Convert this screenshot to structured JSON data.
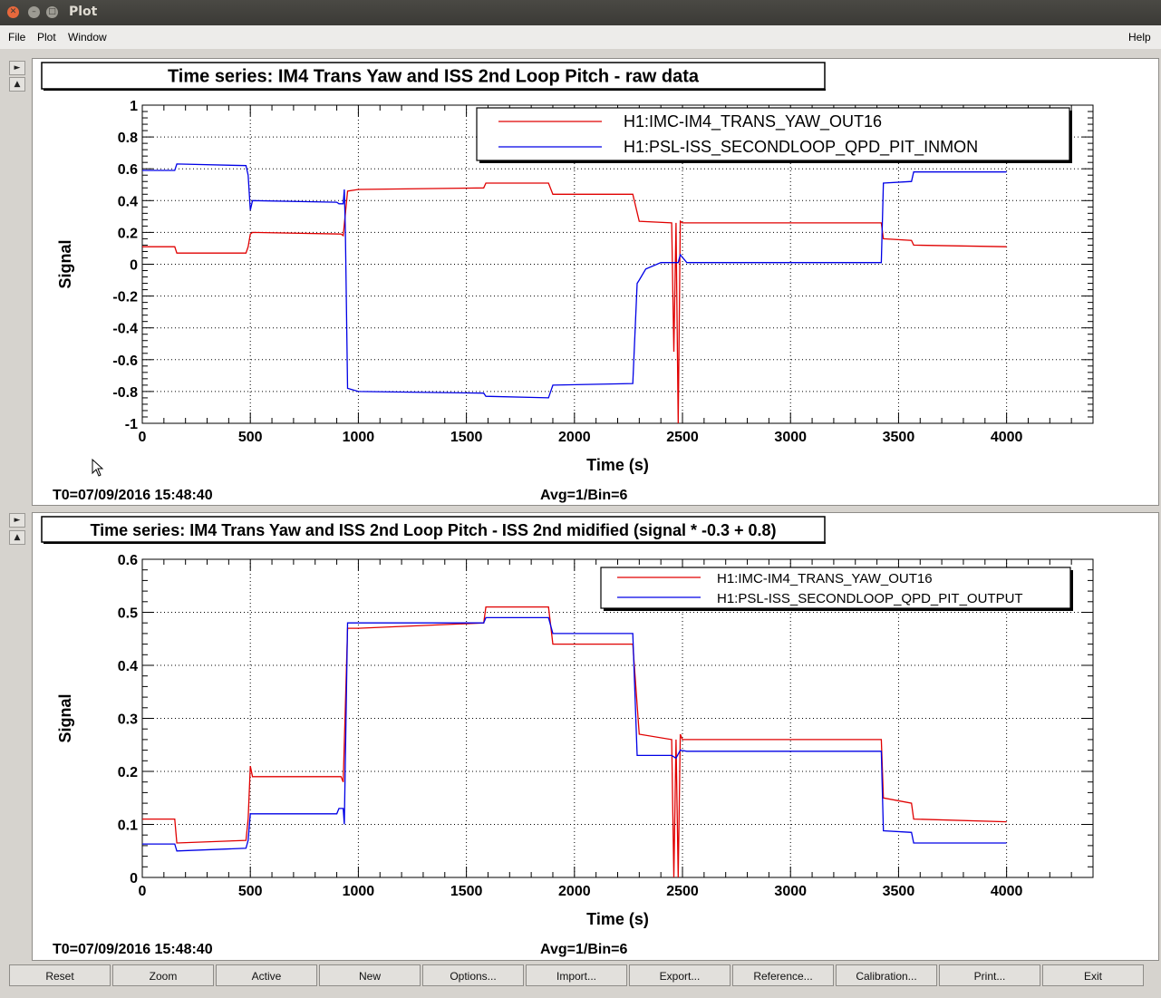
{
  "window": {
    "title": "Plot"
  },
  "menu": {
    "file": "File",
    "plot": "Plot",
    "window": "Window",
    "help": "Help"
  },
  "toolbar": [
    "Reset",
    "Zoom",
    "Active",
    "New",
    "Options...",
    "Import...",
    "Export...",
    "Reference...",
    "Calibration...",
    "Print...",
    "Exit"
  ],
  "colors": {
    "red": "#e00000",
    "blue": "#0000e6",
    "titlebar": "#3c3b37",
    "menubar": "#edecea"
  },
  "chart_data": [
    {
      "type": "line",
      "title": "Time series: IM4 Trans Yaw and ISS 2nd Loop Pitch - raw data",
      "xlabel": "Time (s)",
      "ylabel": "Signal",
      "xlim": [
        0,
        4400
      ],
      "ylim": [
        -1,
        1
      ],
      "xticks": [
        0,
        500,
        1000,
        1500,
        2000,
        2500,
        3000,
        3500,
        4000
      ],
      "yticks": [
        1,
        0.8,
        0.6,
        0.4,
        0.2,
        0,
        -0.2,
        -0.4,
        -0.6,
        -0.8,
        -1
      ],
      "ytick_labels": [
        "1",
        "0.8",
        "0.6",
        "0.4",
        "0.2",
        "0",
        "-0.2",
        "-0.4",
        "-0.6",
        "-0.8",
        "-1"
      ],
      "grid": true,
      "legend_position": "top-right",
      "info_left": "T0=07/09/2016 15:48:40",
      "info_right": "Avg=1/Bin=6",
      "series": [
        {
          "name": "H1:IMC-IM4_TRANS_YAW_OUT16",
          "color": "red",
          "points": [
            [
              0,
              0.11
            ],
            [
              150,
              0.11
            ],
            [
              160,
              0.07
            ],
            [
              480,
              0.07
            ],
            [
              490,
              0.11
            ],
            [
              500,
              0.19
            ],
            [
              510,
              0.2
            ],
            [
              920,
              0.19
            ],
            [
              930,
              0.18
            ],
            [
              950,
              0.46
            ],
            [
              1000,
              0.47
            ],
            [
              1580,
              0.48
            ],
            [
              1590,
              0.51
            ],
            [
              1880,
              0.51
            ],
            [
              1900,
              0.44
            ],
            [
              2270,
              0.44
            ],
            [
              2300,
              0.27
            ],
            [
              2450,
              0.26
            ],
            [
              2460,
              -0.55
            ],
            [
              2470,
              0.26
            ],
            [
              2480,
              -1.0
            ],
            [
              2490,
              0.27
            ],
            [
              2500,
              0.26
            ],
            [
              3420,
              0.26
            ],
            [
              3430,
              0.16
            ],
            [
              3560,
              0.15
            ],
            [
              3570,
              0.12
            ],
            [
              4000,
              0.11
            ]
          ]
        },
        {
          "name": "H1:PSL-ISS_SECONDLOOP_QPD_PIT_INMON",
          "color": "blue",
          "points": [
            [
              0,
              0.59
            ],
            [
              150,
              0.59
            ],
            [
              160,
              0.63
            ],
            [
              480,
              0.62
            ],
            [
              490,
              0.56
            ],
            [
              500,
              0.34
            ],
            [
              510,
              0.4
            ],
            [
              900,
              0.39
            ],
            [
              910,
              0.38
            ],
            [
              930,
              0.38
            ],
            [
              935,
              0.47
            ],
            [
              940,
              0.2
            ],
            [
              950,
              -0.78
            ],
            [
              1000,
              -0.8
            ],
            [
              1580,
              -0.81
            ],
            [
              1590,
              -0.83
            ],
            [
              1880,
              -0.84
            ],
            [
              1900,
              -0.76
            ],
            [
              2270,
              -0.75
            ],
            [
              2290,
              -0.12
            ],
            [
              2300,
              -0.1
            ],
            [
              2330,
              -0.03
            ],
            [
              2400,
              0.01
            ],
            [
              2480,
              0.01
            ],
            [
              2490,
              0.06
            ],
            [
              2520,
              0.01
            ],
            [
              3420,
              0.01
            ],
            [
              3430,
              0.51
            ],
            [
              3560,
              0.52
            ],
            [
              3570,
              0.58
            ],
            [
              4000,
              0.58
            ]
          ]
        }
      ]
    },
    {
      "type": "line",
      "title": "Time series: IM4 Trans Yaw and ISS 2nd Loop Pitch - ISS 2nd midified (signal * -0.3 + 0.8)",
      "xlabel": "Time (s)",
      "ylabel": "Signal",
      "xlim": [
        0,
        4400
      ],
      "ylim": [
        0,
        0.6
      ],
      "xticks": [
        0,
        500,
        1000,
        1500,
        2000,
        2500,
        3000,
        3500,
        4000
      ],
      "yticks": [
        0.6,
        0.5,
        0.4,
        0.3,
        0.2,
        0.1,
        0
      ],
      "ytick_labels": [
        "0.6",
        "0.5",
        "0.4",
        "0.3",
        "0.2",
        "0.1",
        "0"
      ],
      "grid": true,
      "legend_position": "top-right",
      "info_left": "T0=07/09/2016 15:48:40",
      "info_right": "Avg=1/Bin=6",
      "series": [
        {
          "name": "H1:IMC-IM4_TRANS_YAW_OUT16",
          "color": "red",
          "points": [
            [
              0,
              0.11
            ],
            [
              150,
              0.11
            ],
            [
              160,
              0.065
            ],
            [
              480,
              0.07
            ],
            [
              490,
              0.11
            ],
            [
              500,
              0.21
            ],
            [
              510,
              0.19
            ],
            [
              920,
              0.19
            ],
            [
              930,
              0.18
            ],
            [
              950,
              0.47
            ],
            [
              1000,
              0.47
            ],
            [
              1580,
              0.48
            ],
            [
              1590,
              0.51
            ],
            [
              1880,
              0.51
            ],
            [
              1900,
              0.44
            ],
            [
              2270,
              0.44
            ],
            [
              2300,
              0.27
            ],
            [
              2450,
              0.26
            ],
            [
              2460,
              0.0
            ],
            [
              2470,
              0.26
            ],
            [
              2480,
              0.0
            ],
            [
              2490,
              0.27
            ],
            [
              2500,
              0.26
            ],
            [
              3420,
              0.26
            ],
            [
              3430,
              0.15
            ],
            [
              3560,
              0.14
            ],
            [
              3570,
              0.11
            ],
            [
              4000,
              0.105
            ]
          ]
        },
        {
          "name": "H1:PSL-ISS_SECONDLOOP_QPD_PIT_OUTPUT",
          "color": "blue",
          "points": [
            [
              0,
              0.063
            ],
            [
              150,
              0.063
            ],
            [
              160,
              0.05
            ],
            [
              480,
              0.055
            ],
            [
              490,
              0.07
            ],
            [
              500,
              0.12
            ],
            [
              510,
              0.12
            ],
            [
              900,
              0.12
            ],
            [
              910,
              0.13
            ],
            [
              930,
              0.13
            ],
            [
              935,
              0.1
            ],
            [
              950,
              0.48
            ],
            [
              1000,
              0.48
            ],
            [
              1580,
              0.48
            ],
            [
              1590,
              0.49
            ],
            [
              1880,
              0.49
            ],
            [
              1900,
              0.46
            ],
            [
              2270,
              0.46
            ],
            [
              2290,
              0.23
            ],
            [
              2330,
              0.23
            ],
            [
              2450,
              0.23
            ],
            [
              2470,
              0.225
            ],
            [
              2490,
              0.24
            ],
            [
              2520,
              0.238
            ],
            [
              3420,
              0.238
            ],
            [
              3430,
              0.088
            ],
            [
              3560,
              0.085
            ],
            [
              3570,
              0.065
            ],
            [
              4000,
              0.065
            ]
          ]
        }
      ]
    }
  ]
}
